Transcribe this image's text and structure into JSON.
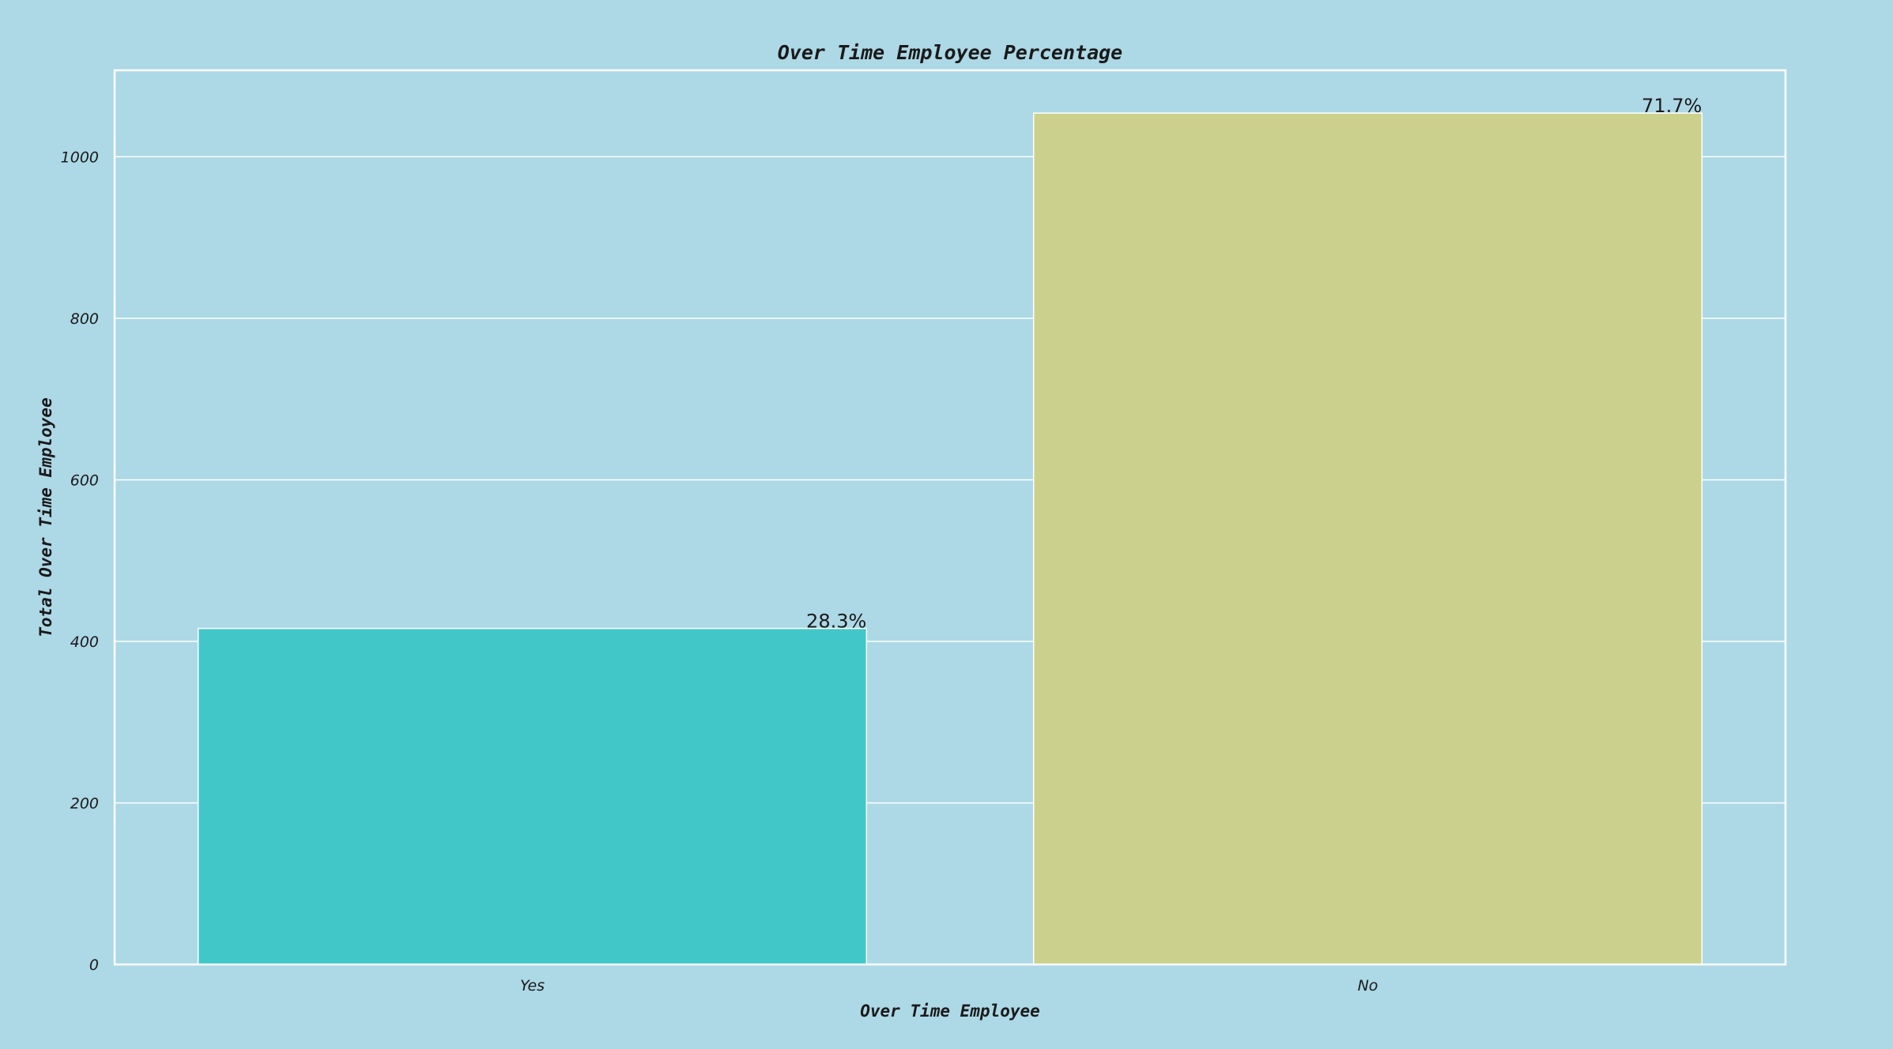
{
  "chart_data": {
    "type": "bar",
    "title": "Over Time Employee Percentage",
    "xlabel": "Over Time Employee",
    "ylabel": "Total Over Time Employee",
    "categories": [
      "Yes",
      "No"
    ],
    "values": [
      416,
      1054
    ],
    "data_labels": [
      "28.3%",
      "71.7%"
    ],
    "bar_colors": [
      "#42c7c9",
      "#cbd18c"
    ],
    "ylim": [
      0,
      1107
    ],
    "yticks": [
      0,
      200,
      400,
      600,
      800,
      1000
    ],
    "grid": true,
    "legend": "none",
    "colors": {
      "background": "#add8e6",
      "grid": "#ffffff",
      "bar_edge": "#ffffff",
      "text": "#1a1a1a"
    }
  }
}
